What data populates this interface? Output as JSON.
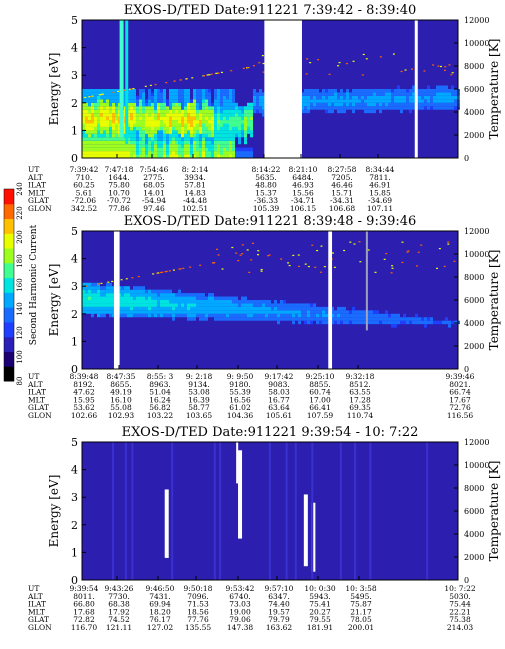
{
  "chart_data": [
    {
      "type": "heatmap",
      "title": "EXOS-D/TED   Date:911221  7:39:42 - 8:39:40",
      "ylabel": "Energy [eV]",
      "ylabel_right": "Temperature [K]",
      "ylim": [
        0,
        5
      ],
      "yticks": [
        "0",
        "1",
        "2",
        "3",
        "4",
        "5"
      ],
      "ylim_right": [
        0,
        12000
      ],
      "yticks_right": [
        "0",
        "2000",
        "4000",
        "6000",
        "8000",
        "10000",
        "12000"
      ],
      "gaps": [
        [
          0.485,
          0.585
        ]
      ],
      "vlines": [
        0.885
      ],
      "row_labels": [
        "UT",
        "ALT",
        "ILAT",
        "MLT",
        "GLAT",
        "GLON"
      ],
      "columns": [
        {
          "UT": "7:39:42",
          "ALT": "710.",
          "ILAT": "60.25",
          "MLT": "5.61",
          "GLAT": "-72.06",
          "GLON": "342.52"
        },
        {
          "UT": "7:47:18",
          "ALT": "1644.",
          "ILAT": "75.80",
          "MLT": "10.70",
          "GLAT": "-70.72",
          "GLON": "77.86"
        },
        {
          "UT": "7:54:46",
          "ALT": "2775.",
          "ILAT": "68.05",
          "MLT": "14.01",
          "GLAT": "-54.94",
          "GLON": "97.46"
        },
        {
          "UT": "8: 2:14",
          "ALT": "3934.",
          "ILAT": "57.81",
          "MLT": "14.83",
          "GLAT": "-44.48",
          "GLON": "102.51"
        },
        {
          "UT": "8:14:22",
          "ALT": "5635.",
          "ILAT": "48.80",
          "MLT": "15.37",
          "GLAT": "-36.33",
          "GLON": "105.39"
        },
        {
          "UT": "8:21:10",
          "ALT": "6484.",
          "ILAT": "46.93",
          "MLT": "15.56",
          "GLAT": "-34.71",
          "GLON": "106.15"
        },
        {
          "UT": "8:27:58",
          "ALT": "7205.",
          "ILAT": "46.46",
          "MLT": "15.71",
          "GLAT": "-34.31",
          "GLON": "106.68"
        },
        {
          "UT": "8:34:44",
          "ALT": "7811.",
          "ILAT": "46.91",
          "MLT": "15.85",
          "GLAT": "-34.69",
          "GLON": "107.11"
        }
      ]
    },
    {
      "type": "heatmap",
      "title": "EXOS-D/TED   Date:911221  8:39:48 - 9:39:46",
      "ylabel": "Energy [eV]",
      "ylabel_right": "Temperature [K]",
      "ylim": [
        0,
        5
      ],
      "yticks": [
        "0",
        "1",
        "2",
        "3",
        "4",
        "5"
      ],
      "ylim_right": [
        0,
        12000
      ],
      "yticks_right": [
        "0",
        "2000",
        "4000",
        "6000",
        "8000",
        "10000",
        "12000"
      ],
      "gaps": [
        [
          0.085,
          0.1
        ],
        [
          0.655,
          0.665
        ]
      ],
      "vlines": [],
      "row_labels": [
        "UT",
        "ALT",
        "ILAT",
        "MLT",
        "GLAT",
        "GLON"
      ],
      "columns": [
        {
          "UT": "8:39:48",
          "ALT": "8192.",
          "ILAT": "47.62",
          "MLT": "15.95",
          "GLAT": "53.62",
          "GLON": "102.66"
        },
        {
          "UT": "8:47:35",
          "ALT": "8655.",
          "ILAT": "49.19",
          "MLT": "16.10",
          "GLAT": "55.08",
          "GLON": "102.93"
        },
        {
          "UT": "8:55: 3",
          "ALT": "8963.",
          "ILAT": "51.04",
          "MLT": "16.24",
          "GLAT": "56.82",
          "GLON": "103.22"
        },
        {
          "UT": "9: 2:18",
          "ALT": "9134.",
          "ILAT": "53.08",
          "MLT": "16.39",
          "GLAT": "58.77",
          "GLON": "103.65"
        },
        {
          "UT": "9: 9:50",
          "ALT": "9180.",
          "ILAT": "55.39",
          "MLT": "16.56",
          "GLAT": "61.02",
          "GLON": "104.36"
        },
        {
          "UT": "9:17:42",
          "ALT": "9083.",
          "ILAT": "58.03",
          "MLT": "16.77",
          "GLAT": "63.64",
          "GLON": "105.61"
        },
        {
          "UT": "9:25:10",
          "ALT": "8855.",
          "ILAT": "60.74",
          "MLT": "17.00",
          "GLAT": "66.41",
          "GLON": "107.59"
        },
        {
          "UT": "9:32:18",
          "ALT": "8512.",
          "ILAT": "63.55",
          "MLT": "17.28",
          "GLAT": "69.35",
          "GLON": "110.74"
        },
        {
          "UT": "9:39:46",
          "ALT": "8021.",
          "ILAT": "66.74",
          "MLT": "17.67",
          "GLAT": "72.76",
          "GLON": "116.56"
        }
      ]
    },
    {
      "type": "heatmap",
      "title": "EXOS-D/TED   Date:911221  9:39:54 - 10: 7:22",
      "ylabel": "Energy [eV]",
      "ylabel_right": "Temperature [K]",
      "ylim": [
        0,
        5
      ],
      "yticks": [
        "0",
        "1",
        "2",
        "3",
        "4",
        "5"
      ],
      "ylim_right": [
        0,
        12000
      ],
      "yticks_right": [
        "0",
        "2000",
        "4000",
        "6000",
        "8000",
        "10000",
        "12000"
      ],
      "gaps": [],
      "vlines": [],
      "row_labels": [
        "UT",
        "ALT",
        "ILAT",
        "MLT",
        "GLAT",
        "GLON"
      ],
      "columns": [
        {
          "UT": "9:39:54",
          "ALT": "8011.",
          "ILAT": "66.80",
          "MLT": "17.68",
          "GLAT": "72.82",
          "GLON": "116.70"
        },
        {
          "UT": "9:43:26",
          "ALT": "7730.",
          "ILAT": "68.38",
          "MLT": "17.92",
          "GLAT": "74.52",
          "GLON": "121.11"
        },
        {
          "UT": "9:46:50",
          "ALT": "7431.",
          "ILAT": "69.94",
          "MLT": "18.20",
          "GLAT": "76.17",
          "GLON": "127.02"
        },
        {
          "UT": "9:50:18",
          "ALT": "7096.",
          "ILAT": "71.53",
          "MLT": "18.56",
          "GLAT": "77.76",
          "GLON": "135.55"
        },
        {
          "UT": "9:53:42",
          "ALT": "6740.",
          "ILAT": "73.03",
          "MLT": "19.00",
          "GLAT": "79.06",
          "GLON": "147.38"
        },
        {
          "UT": "9:57:10",
          "ALT": "6347.",
          "ILAT": "74.40",
          "MLT": "19.57",
          "GLAT": "79.79",
          "GLON": "163.62"
        },
        {
          "UT": "10: 0:30",
          "ALT": "5943.",
          "ILAT": "75.41",
          "MLT": "20.27",
          "GLAT": "79.55",
          "GLON": "181.91"
        },
        {
          "UT": "10: 3:58",
          "ALT": "5495.",
          "ILAT": "75.87",
          "MLT": "21.17",
          "GLAT": "78.05",
          "GLON": "200.01"
        },
        {
          "UT": "10: 7:22",
          "ALT": "5030.",
          "ILAT": "75.44",
          "MLT": "22.21",
          "GLAT": "75.38",
          "GLON": "214.03"
        }
      ]
    }
  ],
  "colorbar": {
    "label": "Second Harmonic Current",
    "ticks": [
      "80",
      "100",
      "120",
      "140",
      "160",
      "180",
      "200",
      "220",
      "240"
    ],
    "colors": [
      "#000000",
      "#1a0070",
      "#2a1fb8",
      "#1f3fff",
      "#1a6cff",
      "#00a8ff",
      "#00e4e0",
      "#40ff90",
      "#9cff20",
      "#e8ff00",
      "#ffc000",
      "#ff6a00",
      "#ff1000"
    ]
  }
}
